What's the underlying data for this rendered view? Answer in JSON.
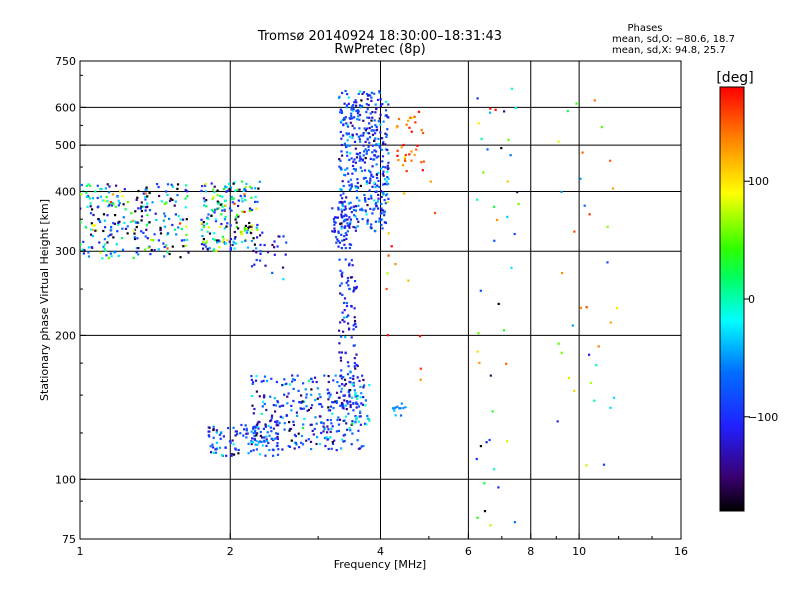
{
  "title": {
    "line1": "Tromsø 20140924 18:30:00–18:31:43",
    "line2": "RwPretec (8p)"
  },
  "stats": {
    "heading": "Phases",
    "line_o": "mean, sd,O: −80.6, 18.7",
    "line_x": "mean, sd,X:  94.8, 25.7"
  },
  "colorbar": {
    "label": "[deg]",
    "ticks": [
      {
        "value": 100,
        "label": "100"
      },
      {
        "value": 0,
        "label": "0"
      },
      {
        "value": -100,
        "label": "−100"
      }
    ],
    "range": [
      -180,
      180
    ]
  },
  "chart_data": {
    "type": "scatter",
    "xlabel": "Frequency [MHz]",
    "ylabel": "Stationary phase Virtual Height [km]",
    "xscale": "log",
    "yscale": "log",
    "xlim": [
      1,
      16
    ],
    "ylim": [
      75,
      750
    ],
    "xticks": [
      {
        "value": 1,
        "label": "1"
      },
      {
        "value": 2,
        "label": "2"
      },
      {
        "value": 4,
        "label": "4"
      },
      {
        "value": 6,
        "label": "6"
      },
      {
        "value": 8,
        "label": "8"
      },
      {
        "value": 10,
        "label": "10"
      },
      {
        "value": 16,
        "label": "16"
      }
    ],
    "yticks": [
      {
        "value": 75,
        "label": "75"
      },
      {
        "value": 100,
        "label": "100"
      },
      {
        "value": 200,
        "label": "200"
      },
      {
        "value": 300,
        "label": "300"
      },
      {
        "value": 400,
        "label": "400"
      },
      {
        "value": 500,
        "label": "500"
      },
      {
        "value": 600,
        "label": "600"
      },
      {
        "value": 750,
        "label": "750"
      }
    ],
    "xgrid": [
      2,
      4,
      6,
      8,
      10
    ],
    "ygrid": [
      100,
      200,
      300,
      400,
      500,
      600
    ],
    "grid": true,
    "point_color_variable": "phase [deg]",
    "point_groups": [
      {
        "fmin": 1.0,
        "fmax": 1.65,
        "hmin": 290,
        "hmax": 415,
        "phase_mean": -60,
        "phase_sd": 90,
        "count": 260
      },
      {
        "fmin": 1.75,
        "fmax": 2.3,
        "hmin": 300,
        "hmax": 420,
        "phase_mean": -50,
        "phase_sd": 100,
        "count": 200
      },
      {
        "fmin": 2.2,
        "fmax": 2.6,
        "hmin": 250,
        "hmax": 330,
        "phase_mean": -100,
        "phase_sd": 30,
        "count": 25
      },
      {
        "fmin": 1.8,
        "fmax": 2.5,
        "hmin": 112,
        "hmax": 130,
        "phase_mean": -90,
        "phase_sd": 40,
        "count": 110
      },
      {
        "fmin": 2.2,
        "fmax": 3.7,
        "hmin": 115,
        "hmax": 165,
        "phase_mean": -95,
        "phase_sd": 40,
        "count": 300
      },
      {
        "fmin": 3.3,
        "fmax": 3.6,
        "hmin": 140,
        "hmax": 290,
        "phase_mean": -105,
        "phase_sd": 25,
        "count": 110
      },
      {
        "fmin": 3.2,
        "fmax": 3.5,
        "hmin": 300,
        "hmax": 380,
        "phase_mean": -100,
        "phase_sd": 25,
        "count": 60
      },
      {
        "fmin": 3.3,
        "fmax": 4.15,
        "hmin": 330,
        "hmax": 650,
        "phase_mean": -90,
        "phase_sd": 35,
        "count": 420
      },
      {
        "fmin": 3.5,
        "fmax": 3.8,
        "hmin": 130,
        "hmax": 160,
        "phase_mean": -40,
        "phase_sd": 30,
        "count": 30
      },
      {
        "fmin": 4.2,
        "fmax": 4.5,
        "hmin": 135,
        "hmax": 145,
        "phase_mean": -50,
        "phase_sd": 10,
        "count": 12
      },
      {
        "fmin": 4.3,
        "fmax": 4.9,
        "hmin": 440,
        "hmax": 600,
        "phase_mean": 140,
        "phase_sd": 30,
        "count": 35
      },
      {
        "fmin": 4.0,
        "fmax": 5.2,
        "hmin": 160,
        "hmax": 420,
        "phase_mean": 120,
        "phase_sd": 60,
        "count": 15
      },
      {
        "fmin": 6.2,
        "fmax": 7.6,
        "hmin": 80,
        "hmax": 660,
        "phase_mean": 0,
        "phase_sd": 120,
        "count": 45
      },
      {
        "fmin": 9.0,
        "fmax": 12.0,
        "hmin": 100,
        "hmax": 660,
        "phase_mean": 60,
        "phase_sd": 90,
        "count": 35
      }
    ]
  }
}
